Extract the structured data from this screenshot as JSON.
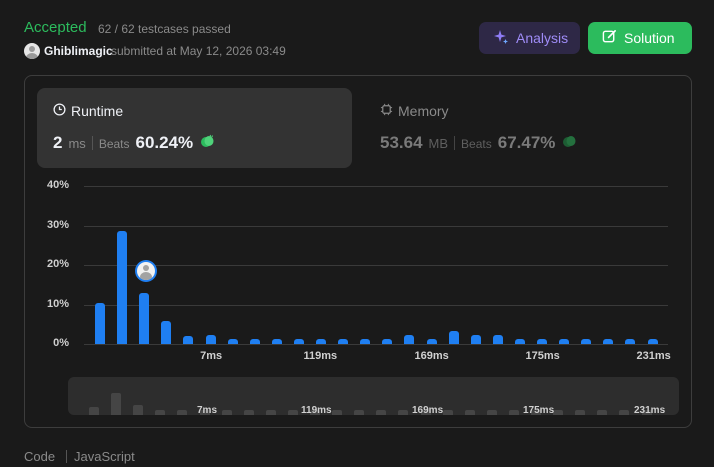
{
  "header": {
    "status": "Accepted",
    "testcases": "62 / 62 testcases passed",
    "username": "Ghiblimagic",
    "submitted": "submitted at May 12, 2026 03:49",
    "analysis_label": "Analysis",
    "solution_label": "Solution",
    "colors": {
      "accepted": "#2cbb5d",
      "analysis_text": "#9f8cf7",
      "solution_bg": "#2cbb5d"
    }
  },
  "runtime": {
    "title": "Runtime",
    "value": "2",
    "unit": "ms",
    "beats_label": "Beats",
    "beats_value": "60.24%"
  },
  "memory": {
    "title": "Memory",
    "value": "53.64",
    "unit": "MB",
    "beats_label": "Beats",
    "beats_value": "67.47%"
  },
  "footer": {
    "code_label": "Code",
    "language": "JavaScript"
  },
  "chart_data": {
    "type": "bar",
    "title": "",
    "xlabel": "",
    "ylabel": "",
    "ylim": [
      0,
      40
    ],
    "y_ticks": [
      "40%",
      "30%",
      "20%",
      "10%",
      "0%"
    ],
    "x_tick_labels": [
      "7ms",
      "119ms",
      "169ms",
      "175ms",
      "231ms"
    ],
    "values": [
      10.5,
      28.5,
      12.8,
      5.7,
      2.0,
      2.2,
      1.2,
      1.2,
      1.2,
      1.2,
      1.2,
      1.2,
      1.2,
      1.2,
      2.2,
      1.2,
      3.2,
      2.2,
      2.2,
      1.2,
      1.2,
      1.2,
      1.2,
      1.2,
      1.2,
      1.2
    ],
    "user_bar_index": 2,
    "bar_color": "#1f7ff2",
    "grid": true
  }
}
